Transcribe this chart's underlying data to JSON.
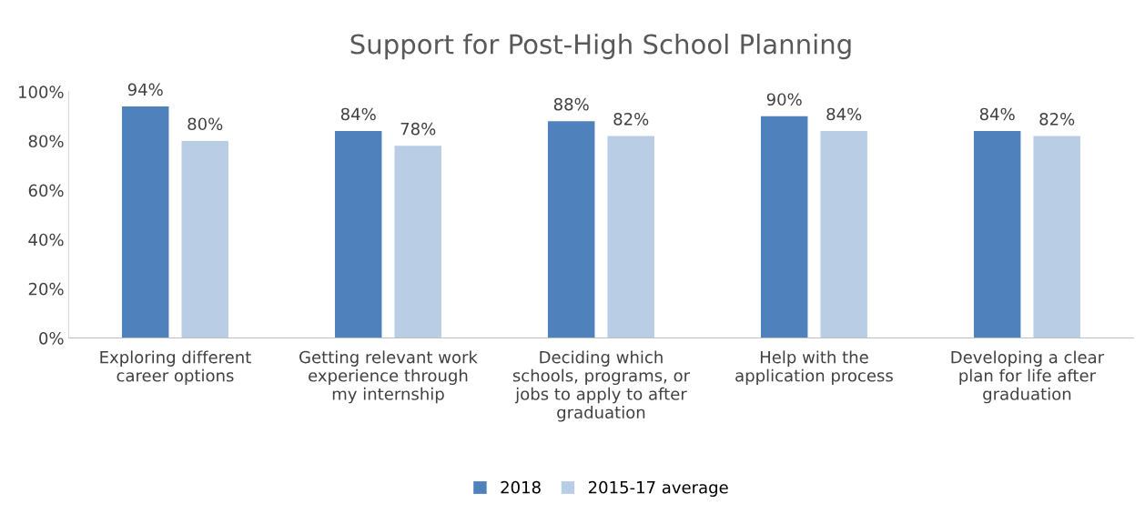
{
  "chart_data": {
    "type": "bar",
    "title": "Support for Post-High School Planning",
    "categories": [
      "Exploring different\ncareer options",
      "Getting relevant work\nexperience through\nmy internship",
      "Deciding which\nschools, programs, or\njobs to apply to after\ngraduation",
      "Help with the\napplication process",
      "Developing a clear\nplan for life after\ngraduation"
    ],
    "series": [
      {
        "name": "2018",
        "color": "#4f81bd",
        "values": [
          94,
          84,
          88,
          90,
          84
        ],
        "value_labels": [
          "94%",
          "84%",
          "88%",
          "90%",
          "84%"
        ]
      },
      {
        "name": "2015-17 average",
        "color": "#b9cde5",
        "values": [
          80,
          78,
          82,
          84,
          82
        ],
        "value_labels": [
          "80%",
          "78%",
          "82%",
          "84%",
          "82%"
        ]
      }
    ],
    "ylim": [
      0,
      100
    ],
    "yticks": [
      {
        "value": 0,
        "label": "0%"
      },
      {
        "value": 20,
        "label": "20%"
      },
      {
        "value": 40,
        "label": "40%"
      },
      {
        "value": 60,
        "label": "60%"
      },
      {
        "value": 80,
        "label": "80%"
      },
      {
        "value": 100,
        "label": "100%"
      }
    ],
    "grid": false,
    "legend": "bottom"
  }
}
